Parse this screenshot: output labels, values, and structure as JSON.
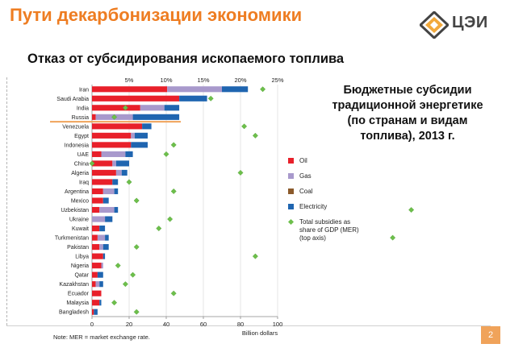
{
  "slide": {
    "title": "Пути декарбонизации экономики",
    "subtitle": "Отказ от субсидирования ископаемого топлива",
    "logo_text": "ЦЭИ",
    "description": [
      "Бюджетные субсидии",
      "традиционной энергетике",
      "(по странам и видам",
      "топлива), 2013 г."
    ],
    "note": "Note: MER = market exchange rate.",
    "page_number": "2"
  },
  "colors": {
    "oil": "#e8202a",
    "gas": "#a899cc",
    "coal": "#8b5a2b",
    "electricity": "#1f65b0",
    "marker": "#6dbf4b",
    "title_orange": "#ee7d22",
    "highlight": "#f0a35a"
  },
  "chart_data": {
    "type": "bar",
    "orientation": "horizontal",
    "stacked": true,
    "categories": [
      "Iran",
      "Saudi Arabia",
      "India",
      "Russia",
      "Venezuela",
      "Egypt",
      "Indonesia",
      "UAE",
      "China",
      "Algeria",
      "Iraq",
      "Argentina",
      "Mexico",
      "Uzbekistan",
      "Ukraine",
      "Kuwait",
      "Turkmenistan",
      "Pakistan",
      "Libya",
      "Nigeria",
      "Qatar",
      "Kazakhstan",
      "Ecuador",
      "Malaysia",
      "Bangladesh"
    ],
    "highlight_category": "Russia",
    "series": [
      {
        "name": "Oil",
        "color_key": "oil",
        "values": [
          40.5,
          47,
          26,
          2,
          27,
          21,
          21,
          5,
          11,
          13,
          11,
          6,
          6,
          4,
          0,
          4,
          3,
          4,
          6,
          5,
          3,
          2,
          5,
          4,
          1
        ]
      },
      {
        "name": "Gas",
        "color_key": "gas",
        "values": [
          29.5,
          0,
          13,
          20,
          0,
          2,
          0,
          13,
          2,
          3,
          0,
          6,
          0,
          8,
          7,
          0,
          4,
          2,
          0,
          1,
          0,
          2,
          0,
          0,
          0
        ]
      },
      {
        "name": "Coal",
        "color_key": "coal",
        "values": [
          0,
          0,
          0,
          0,
          0,
          0,
          0,
          0,
          0,
          0,
          0,
          0,
          0,
          0,
          0,
          0,
          0,
          0,
          0,
          0,
          0,
          0,
          0,
          0,
          0
        ]
      },
      {
        "name": "Electricity",
        "color_key": "electricity",
        "values": [
          14,
          15,
          8,
          25,
          5,
          7,
          9,
          4,
          7,
          3,
          3,
          2,
          3,
          2,
          4,
          3,
          2,
          3,
          1,
          0,
          3,
          2,
          0,
          1,
          2
        ]
      }
    ],
    "subsidy_share_gdp_pct": [
      23,
      16,
      4.5,
      3,
      20.5,
      22,
      11,
      10,
      0,
      20,
      5,
      11,
      6,
      43,
      10.5,
      9,
      40.5,
      6,
      22,
      3.5,
      5.5,
      4.5,
      11,
      3,
      6
    ],
    "subsidy_share_label": "Total subsidies as share of GDP (MER) (top axis)",
    "xlabel": "Billion dollars",
    "xlim": [
      0,
      100
    ],
    "xticks": [
      0,
      20,
      40,
      60,
      80,
      100
    ],
    "top_axis": {
      "lim": [
        0,
        25
      ],
      "ticks": [
        "5%",
        "10%",
        "15%",
        "20%",
        "25%"
      ],
      "tick_values": [
        5,
        10,
        15,
        20,
        25
      ]
    },
    "legend": [
      {
        "label": "Oil",
        "type": "square",
        "color_key": "oil"
      },
      {
        "label": "Gas",
        "type": "square",
        "color_key": "gas"
      },
      {
        "label": "Coal",
        "type": "square",
        "color_key": "coal"
      },
      {
        "label": "Electricity",
        "type": "square",
        "color_key": "electricity"
      },
      {
        "label": [
          "Total subsidies as",
          "share of GDP (MER)",
          "(top axis)"
        ],
        "type": "diamond",
        "color_key": "marker"
      }
    ],
    "legend_position": "right",
    "grid": true
  }
}
